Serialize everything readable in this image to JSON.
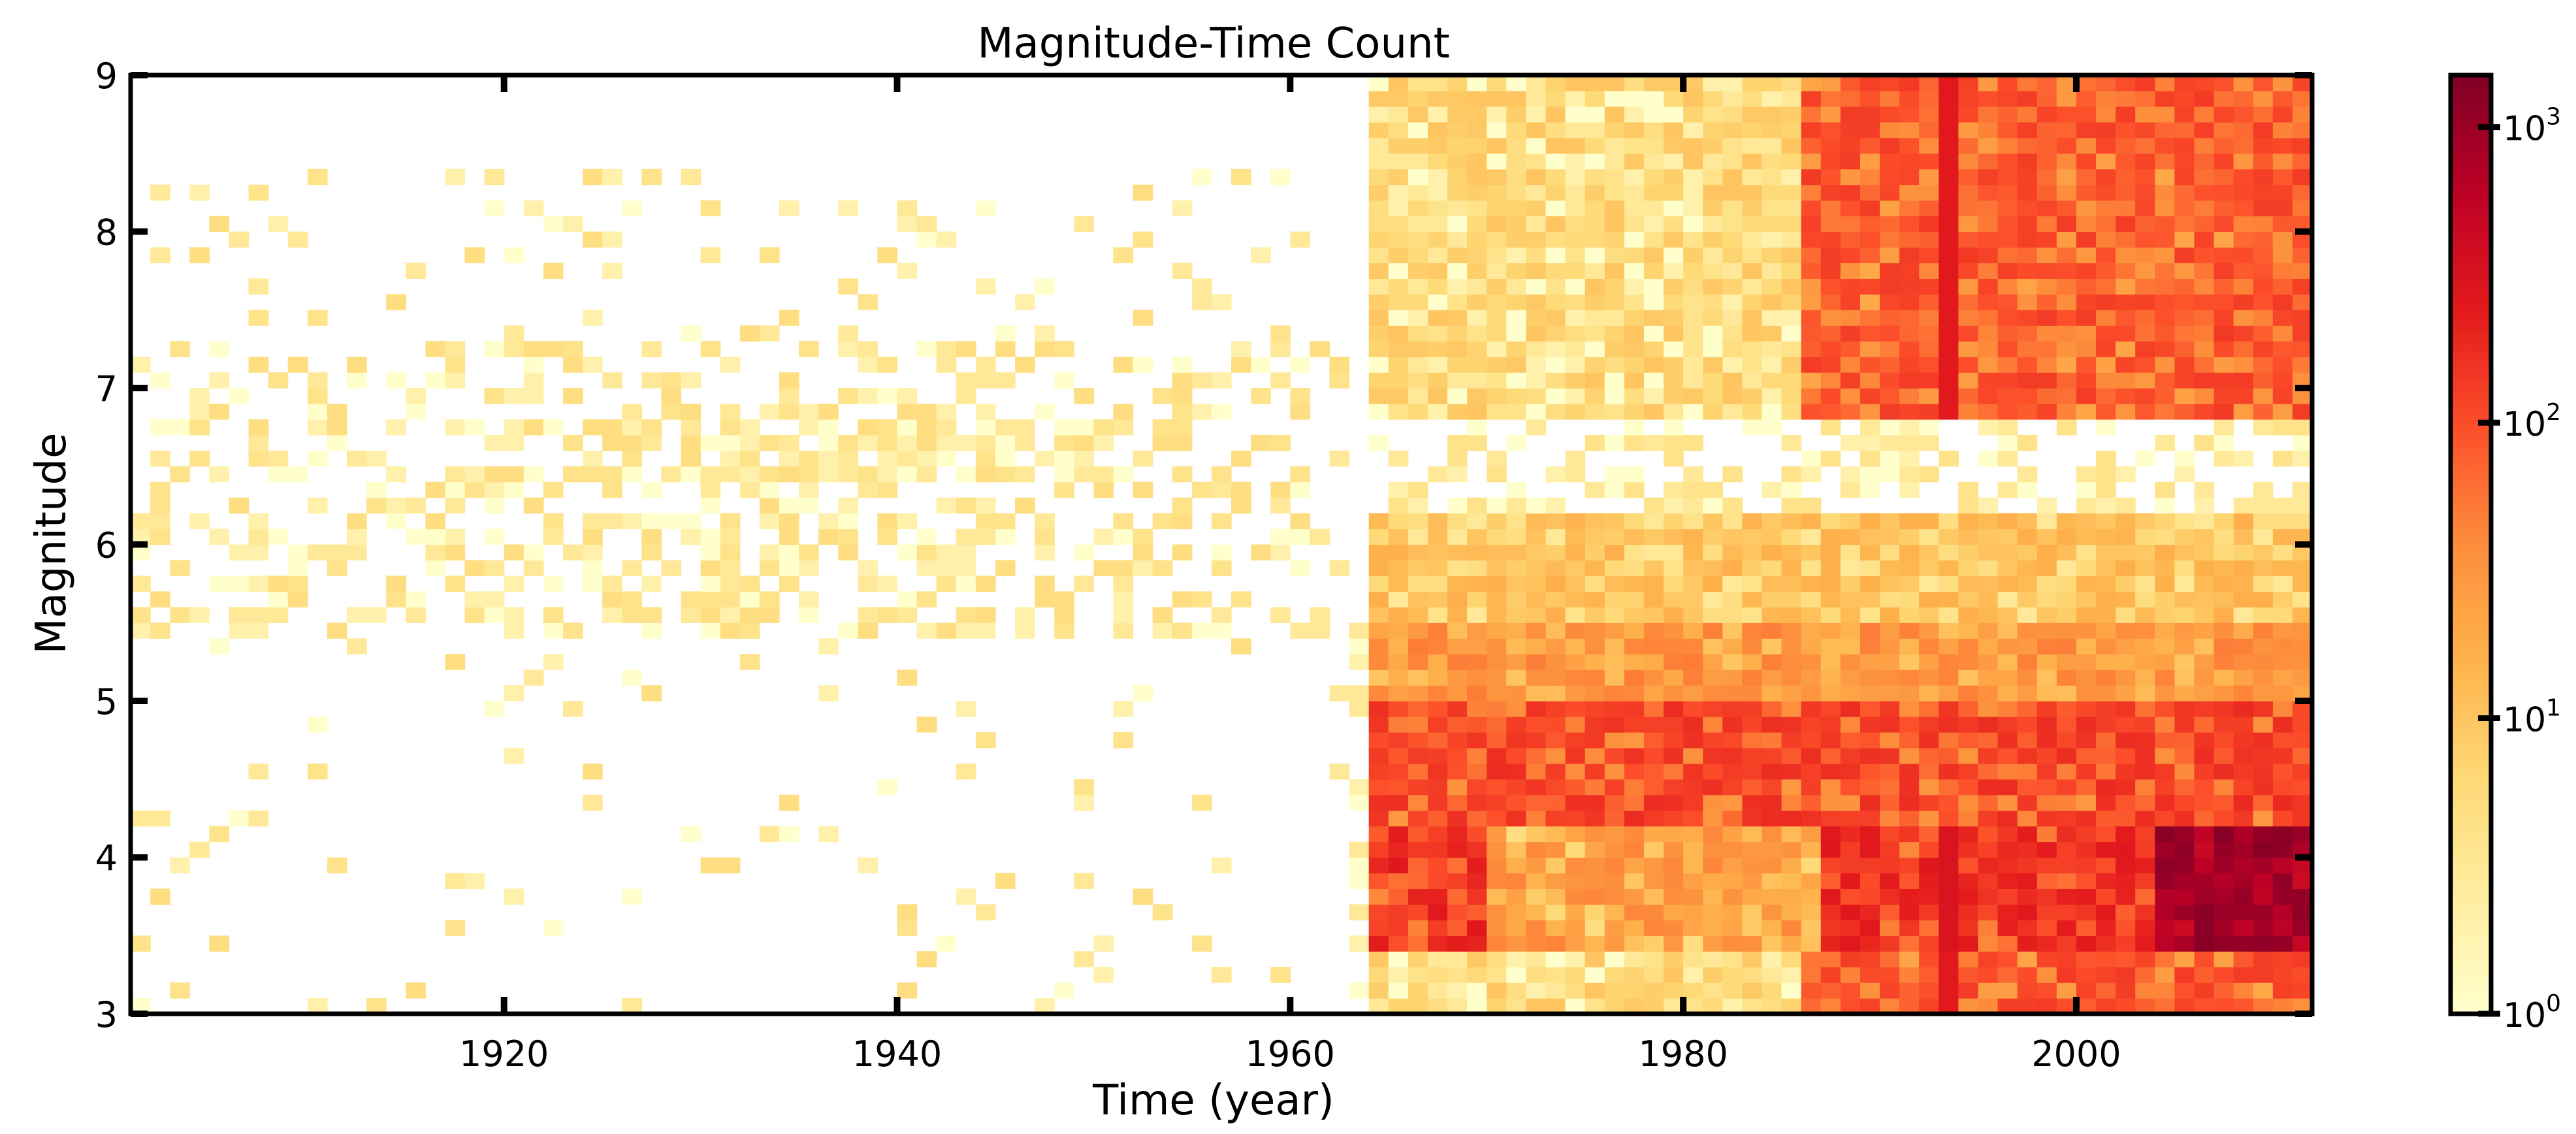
{
  "chart_data": {
    "type": "heatmap",
    "title": "Magnitude-Time Count",
    "xlabel": "Time (year)",
    "ylabel": "Magnitude",
    "xlim": [
      1901,
      2012
    ],
    "ylim": [
      3,
      9
    ],
    "x_ticks": [
      1920,
      1940,
      1960,
      1980,
      2000
    ],
    "y_ticks": [
      3,
      4,
      5,
      6,
      7,
      8,
      9
    ],
    "x_tick_labels": [
      "1920",
      "1940",
      "1960",
      "1980",
      "2000"
    ],
    "y_tick_labels": [
      "3",
      "4",
      "5",
      "6",
      "7",
      "8",
      "9"
    ],
    "colorbar": {
      "scale": "log",
      "range": [
        1,
        1500
      ],
      "ticks": [
        1,
        10,
        100,
        1000
      ],
      "tick_labels": [
        [
          "10",
          "0"
        ],
        [
          "10",
          "1"
        ],
        [
          "10",
          "2"
        ],
        [
          "10",
          "3"
        ]
      ],
      "colormap": "YlOrRd",
      "colors": [
        "#ffffcc",
        "#ffeda0",
        "#fed976",
        "#feb24c",
        "#fd8d3c",
        "#fc4e2a",
        "#e31a1c",
        "#bd0026",
        "#800026"
      ]
    },
    "grid": false,
    "bins": {
      "year_start": 1901,
      "year_bin_width": 1,
      "magnitude_start": 3.0,
      "magnitude_bin_width": 0.1
    },
    "regions": [
      {
        "years": [
          1901,
          1963
        ],
        "magnitudes": [
          3.0,
          8.4
        ],
        "count_range": [
          1,
          6
        ],
        "description_of_density": "sparse"
      },
      {
        "years": [
          1964,
          2011
        ],
        "magnitudes": [
          6.0,
          6.8
        ],
        "count_range": [
          1,
          5
        ],
        "description_of_density": "sparse"
      },
      {
        "years": [
          1964,
          2011
        ],
        "magnitudes": [
          5.0,
          6.0
        ],
        "count_range": [
          3,
          40
        ]
      },
      {
        "years": [
          1964,
          2011
        ],
        "magnitudes": [
          3.0,
          5.0
        ],
        "count_range": [
          5,
          300
        ]
      },
      {
        "years": [
          2004,
          2011
        ],
        "magnitudes": [
          3.4,
          4.2
        ],
        "count_range": [
          300,
          1500
        ]
      },
      {
        "years": [
          1993,
          1994
        ],
        "magnitudes": [
          3.0,
          4.2
        ],
        "count_range": [
          150,
          500
        ]
      }
    ]
  }
}
